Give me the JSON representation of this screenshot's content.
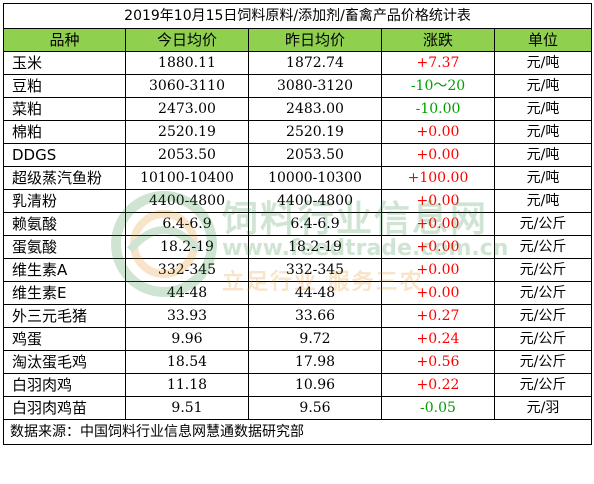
{
  "title": "2019年10月15日饲料原料/添加剂/畜禽产品价格统计表",
  "headers": [
    "品种",
    "今日均价",
    "昨日均价",
    "涨跌",
    "单位"
  ],
  "rows": [
    {
      "name": "玉米",
      "today": "1880.11",
      "yesterday": "1872.74",
      "change": "+7.37",
      "unit": "元/吨",
      "dir": "up"
    },
    {
      "name": "豆粕",
      "today": "3060-3110",
      "yesterday": "3080-3120",
      "change": "-10～20",
      "unit": "元/吨",
      "dir": "down"
    },
    {
      "name": "菜粕",
      "today": "2473.00",
      "yesterday": "2483.00",
      "change": "-10.00",
      "unit": "元/吨",
      "dir": "down"
    },
    {
      "name": "棉粕",
      "today": "2520.19",
      "yesterday": "2520.19",
      "change": "+0.00",
      "unit": "元/吨",
      "dir": "up"
    },
    {
      "name": "DDGS",
      "today": "2053.50",
      "yesterday": "2053.50",
      "change": "+0.00",
      "unit": "元/吨",
      "dir": "up"
    },
    {
      "name": "超级蒸汽鱼粉",
      "today": "10100-10400",
      "yesterday": "10000-10300",
      "change": "+100.00",
      "unit": "元/吨",
      "dir": "up"
    },
    {
      "name": "乳清粉",
      "today": "4400-4800",
      "yesterday": "4400-4800",
      "change": "+0.00",
      "unit": "元/吨",
      "dir": "up"
    },
    {
      "name": "赖氨酸",
      "today": "6.4-6.9",
      "yesterday": "6.4-6.9",
      "change": "+0.00",
      "unit": "元/公斤",
      "dir": "up"
    },
    {
      "name": "蛋氨酸",
      "today": "18.2-19",
      "yesterday": "18.2-19",
      "change": "+0.00",
      "unit": "元/公斤",
      "dir": "up"
    },
    {
      "name": "维生素A",
      "today": "332-345",
      "yesterday": "332-345",
      "change": "+0.00",
      "unit": "元/公斤",
      "dir": "up"
    },
    {
      "name": "维生素E",
      "today": "44-48",
      "yesterday": "44-48",
      "change": "+0.00",
      "unit": "元/公斤",
      "dir": "up"
    },
    {
      "name": "外三元毛猪",
      "today": "33.93",
      "yesterday": "33.66",
      "change": "+0.27",
      "unit": "元/公斤",
      "dir": "up"
    },
    {
      "name": "鸡蛋",
      "today": "9.96",
      "yesterday": "9.72",
      "change": "+0.24",
      "unit": "元/公斤",
      "dir": "up"
    },
    {
      "name": "淘汰蛋毛鸡",
      "today": "18.54",
      "yesterday": "17.98",
      "change": "+0.56",
      "unit": "元/公斤",
      "dir": "up"
    },
    {
      "name": "白羽肉鸡",
      "today": "11.18",
      "yesterday": "10.96",
      "change": "+0.22",
      "unit": "元/公斤",
      "dir": "up"
    },
    {
      "name": "白羽肉鸡苗",
      "today": "9.51",
      "yesterday": "9.56",
      "change": "-0.05",
      "unit": "元/羽",
      "dir": "down"
    }
  ],
  "footer": "数据来源：中国饲料行业信息网慧通数据研究部",
  "watermark": {
    "main": "饲料行业信息网",
    "url": "www.feedtrade.com.cn",
    "slogan": "立足行业   服务三农"
  },
  "colors": {
    "header_bg": "#8fd14f",
    "up": "#ff0000",
    "down": "#00a000"
  }
}
